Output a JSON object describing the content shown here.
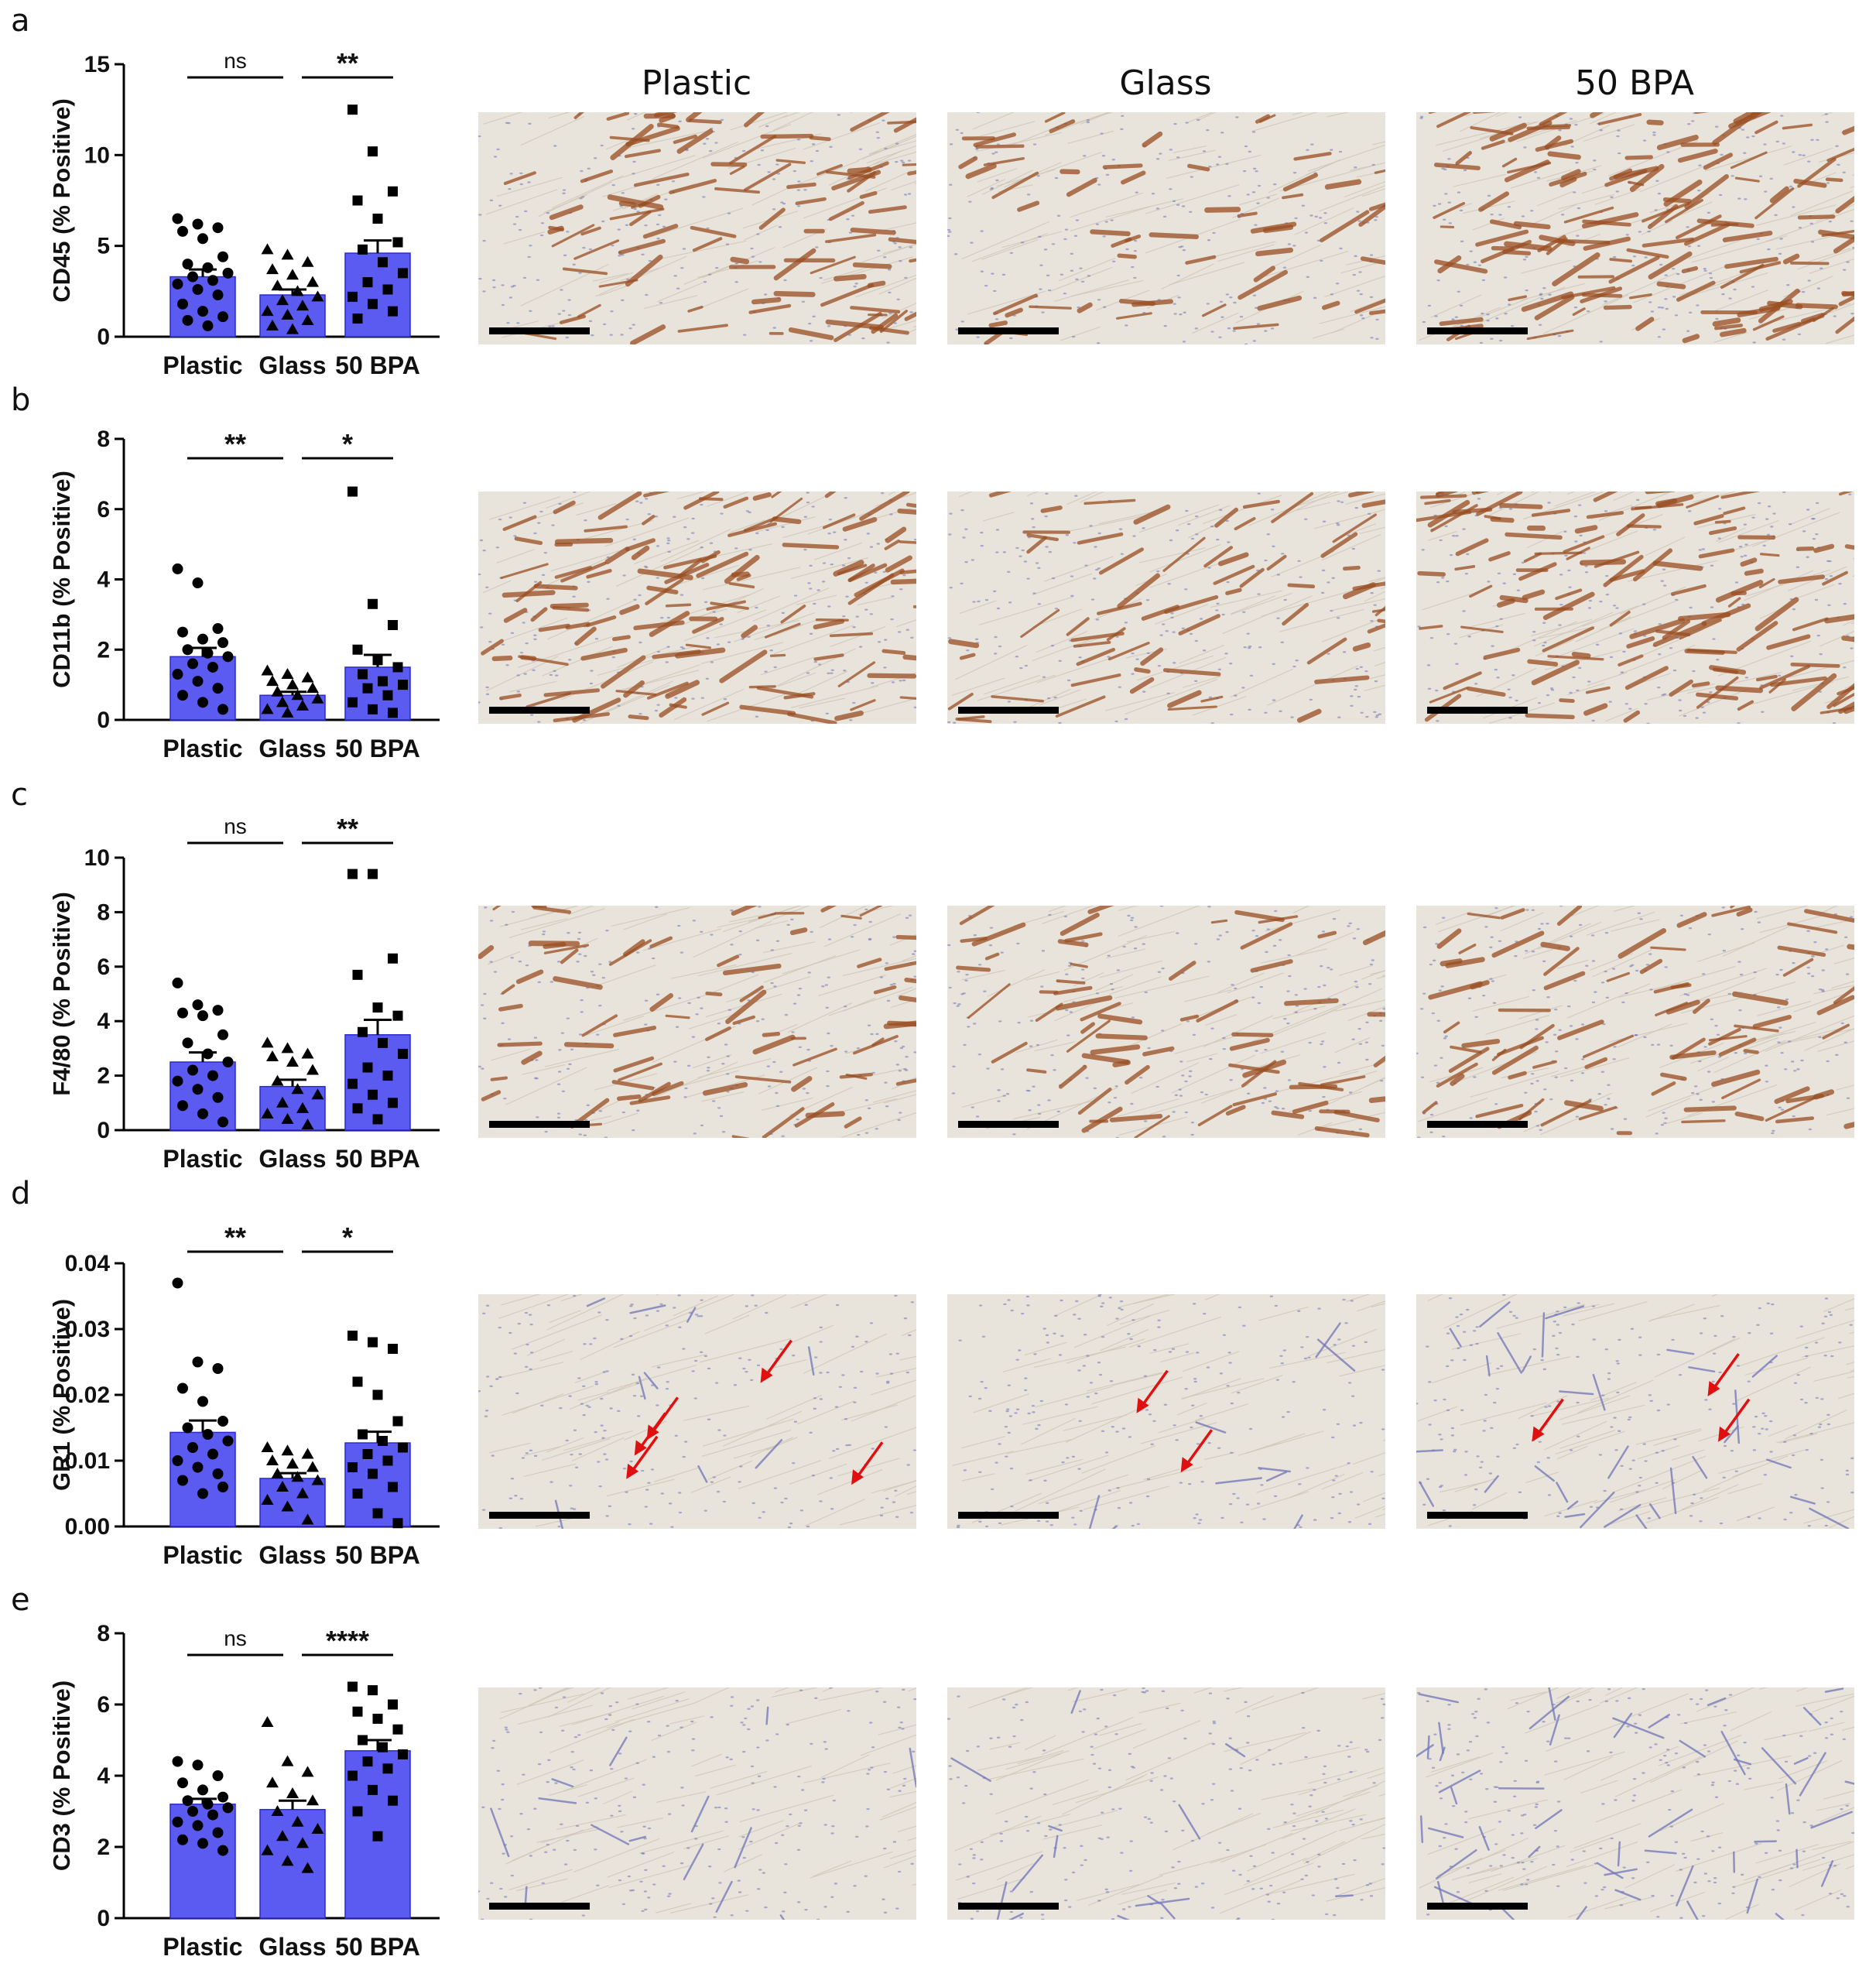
{
  "column_headers": [
    "Plastic",
    "Glass",
    "50 BPA"
  ],
  "colors": {
    "bar_fill": "#5b5bf2",
    "tissue_bg": "#e9e4db",
    "dab_stain": "#9a4e22",
    "hematoxylin": "#6f74b8",
    "arrow": "#e01010",
    "scale_bar": "#000000"
  },
  "chart_data": [
    {
      "panel": "a",
      "type": "bar",
      "categories": [
        "Plastic",
        "Glass",
        "50 BPA"
      ],
      "values": [
        3.3,
        2.3,
        4.6
      ],
      "errors": [
        0.4,
        0.3,
        0.7
      ],
      "ylabel": "CD45 (% Positive)",
      "ylim": [
        0,
        15
      ],
      "yticks": [
        "0",
        "5",
        "10",
        "15"
      ],
      "points": [
        [
          6.5,
          6.2,
          6.0,
          5.8,
          5.4,
          4.4,
          4.0,
          3.8,
          3.5,
          3.3,
          3.1,
          2.9,
          2.6,
          2.3,
          1.8,
          1.4,
          1.1,
          0.9,
          0.6
        ],
        [
          4.8,
          4.5,
          4.1,
          3.7,
          3.4,
          3.0,
          2.8,
          2.5,
          2.2,
          2.0,
          1.7,
          1.4,
          1.2,
          0.9,
          0.6,
          0.4
        ],
        [
          12.5,
          10.2,
          8.0,
          7.5,
          6.5,
          5.2,
          4.8,
          4.1,
          3.5,
          3.0,
          2.6,
          2.2,
          1.8,
          1.4,
          1.0
        ]
      ],
      "markers": [
        "circle",
        "triangle",
        "square"
      ],
      "significance": [
        {
          "from": 0,
          "to": 1,
          "label": "ns"
        },
        {
          "from": 1,
          "to": 2,
          "label": "**"
        }
      ]
    },
    {
      "panel": "b",
      "type": "bar",
      "categories": [
        "Plastic",
        "Glass",
        "50 BPA"
      ],
      "values": [
        1.8,
        0.7,
        1.5
      ],
      "errors": [
        0.25,
        0.1,
        0.35
      ],
      "ylabel": "CD11b (% Positive)",
      "ylim": [
        0,
        8
      ],
      "yticks": [
        "0",
        "2",
        "4",
        "6",
        "8"
      ],
      "points": [
        [
          4.3,
          3.9,
          2.6,
          2.5,
          2.3,
          2.2,
          2.0,
          1.9,
          1.8,
          1.6,
          1.5,
          1.3,
          1.1,
          0.9,
          0.7,
          0.5,
          0.3
        ],
        [
          1.4,
          1.3,
          1.2,
          1.1,
          1.0,
          0.9,
          0.8,
          0.7,
          0.6,
          0.5,
          0.4,
          0.3,
          0.2
        ],
        [
          6.5,
          3.3,
          2.7,
          2.0,
          1.7,
          1.5,
          1.3,
          1.1,
          1.0,
          0.9,
          0.7,
          0.5,
          0.3,
          0.2
        ]
      ],
      "markers": [
        "circle",
        "triangle",
        "square"
      ],
      "significance": [
        {
          "from": 0,
          "to": 1,
          "label": "**"
        },
        {
          "from": 1,
          "to": 2,
          "label": "*"
        }
      ]
    },
    {
      "panel": "c",
      "type": "bar",
      "categories": [
        "Plastic",
        "Glass",
        "50 BPA"
      ],
      "values": [
        2.5,
        1.6,
        3.5
      ],
      "errors": [
        0.35,
        0.25,
        0.55
      ],
      "ylabel": "F4/80 (% Positive)",
      "ylim": [
        0,
        10
      ],
      "yticks": [
        "0",
        "2",
        "4",
        "6",
        "8",
        "10"
      ],
      "points": [
        [
          5.4,
          4.6,
          4.4,
          4.3,
          4.2,
          3.5,
          3.2,
          2.8,
          2.5,
          2.2,
          2.0,
          1.8,
          1.5,
          1.2,
          0.9,
          0.6,
          0.3
        ],
        [
          3.2,
          3.0,
          2.8,
          2.7,
          2.5,
          2.2,
          1.8,
          1.5,
          1.3,
          1.0,
          0.8,
          0.6,
          0.4,
          0.2
        ],
        [
          9.4,
          9.4,
          6.3,
          5.7,
          4.5,
          4.2,
          3.6,
          3.2,
          2.8,
          2.3,
          2.0,
          1.7,
          1.3,
          1.0,
          0.8,
          0.4
        ]
      ],
      "markers": [
        "circle",
        "triangle",
        "square"
      ],
      "significance": [
        {
          "from": 0,
          "to": 1,
          "label": "ns"
        },
        {
          "from": 1,
          "to": 2,
          "label": "**"
        }
      ]
    },
    {
      "panel": "d",
      "type": "bar",
      "categories": [
        "Plastic",
        "Glass",
        "50 BPA"
      ],
      "values": [
        0.0143,
        0.0073,
        0.0127
      ],
      "errors": [
        0.0018,
        0.0008,
        0.0017
      ],
      "ylabel": "GR1 (% Positive)",
      "ylim": [
        0,
        0.04
      ],
      "yticks": [
        "0.00",
        "0.01",
        "0.02",
        "0.03",
        "0.04"
      ],
      "points": [
        [
          0.037,
          0.025,
          0.024,
          0.021,
          0.019,
          0.016,
          0.015,
          0.014,
          0.013,
          0.012,
          0.011,
          0.01,
          0.009,
          0.008,
          0.007,
          0.005,
          0.006
        ],
        [
          0.012,
          0.0115,
          0.011,
          0.01,
          0.0095,
          0.009,
          0.008,
          0.0075,
          0.007,
          0.006,
          0.005,
          0.004,
          0.003,
          0.001
        ],
        [
          0.029,
          0.028,
          0.027,
          0.022,
          0.02,
          0.016,
          0.014,
          0.013,
          0.012,
          0.011,
          0.01,
          0.009,
          0.008,
          0.006,
          0.005,
          0.002,
          0.0005
        ]
      ],
      "markers": [
        "circle",
        "triangle",
        "square"
      ],
      "significance": [
        {
          "from": 0,
          "to": 1,
          "label": "**"
        },
        {
          "from": 1,
          "to": 2,
          "label": "*"
        }
      ]
    },
    {
      "panel": "e",
      "type": "bar",
      "categories": [
        "Plastic",
        "Glass",
        "50 BPA"
      ],
      "values": [
        3.2,
        3.05,
        4.7
      ],
      "errors": [
        0.15,
        0.25,
        0.3
      ],
      "ylabel": "CD3 (% Positive)",
      "ylim": [
        0,
        8
      ],
      "yticks": [
        "0",
        "2",
        "4",
        "6",
        "8"
      ],
      "points": [
        [
          4.4,
          4.3,
          4.0,
          3.8,
          3.6,
          3.4,
          3.3,
          3.2,
          3.1,
          3.0,
          2.9,
          2.7,
          2.6,
          2.4,
          2.2,
          2.1,
          1.9
        ],
        [
          5.5,
          4.4,
          4.1,
          3.8,
          3.5,
          3.3,
          3.0,
          2.7,
          2.5,
          2.3,
          2.1,
          1.9,
          1.6,
          1.4
        ],
        [
          6.5,
          6.4,
          6.0,
          5.8,
          5.6,
          5.3,
          5.0,
          4.8,
          4.6,
          4.4,
          4.2,
          4.0,
          3.6,
          3.3,
          3.0,
          2.3
        ]
      ],
      "markers": [
        "circle",
        "triangle",
        "square"
      ],
      "significance": [
        {
          "from": 0,
          "to": 1,
          "label": "ns"
        },
        {
          "from": 1,
          "to": 2,
          "label": "****"
        }
      ]
    }
  ],
  "micrographs": [
    {
      "panel": "a",
      "stain": "brown",
      "density": [
        0.6,
        0.35,
        0.85
      ],
      "arrows": [
        0,
        0,
        0
      ]
    },
    {
      "panel": "b",
      "stain": "brown",
      "density": [
        0.75,
        0.4,
        0.8
      ],
      "arrows": [
        0,
        0,
        0
      ]
    },
    {
      "panel": "c",
      "stain": "brown",
      "density": [
        0.45,
        0.4,
        0.5
      ],
      "arrows": [
        0,
        0,
        0
      ]
    },
    {
      "panel": "d",
      "stain": "blue",
      "density": [
        0.1,
        0.1,
        0.35
      ],
      "arrows": [
        5,
        2,
        3
      ]
    },
    {
      "panel": "e",
      "stain": "blue",
      "density": [
        0.15,
        0.15,
        0.55
      ],
      "arrows": [
        0,
        0,
        0
      ]
    }
  ]
}
